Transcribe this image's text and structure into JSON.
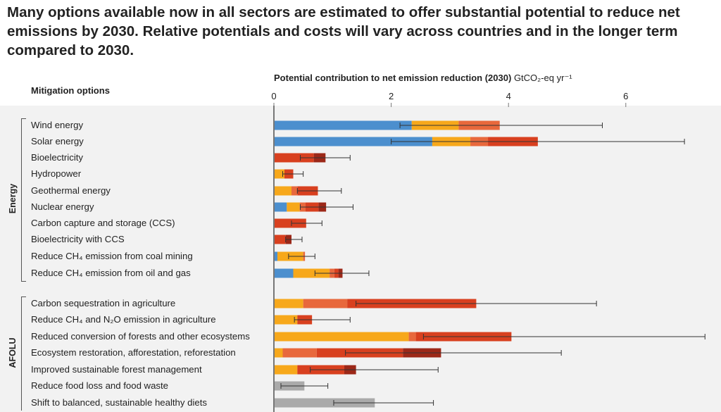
{
  "headline": "Many options available now in all sectors are estimated to offer substantial potential to reduce net emissions by 2030. Relative potentials and costs will vary across countries and in the longer term compared to 2030.",
  "axis_title_bold": "Potential contribution to net emission reduction (2030)",
  "axis_title_unit": "GtCO₂-eq yr⁻¹",
  "column_header": "Mitigation options",
  "groups": [
    "Energy",
    "AFOLU"
  ],
  "colors": {
    "blue": "#4c8fce",
    "yellow": "#f7a81b",
    "orange": "#e8683c",
    "red": "#d8401f",
    "darkred": "#9c2818",
    "gray": "#aaaaaa",
    "error": "#333333",
    "axis": "#777777"
  },
  "chart_data": {
    "type": "bar",
    "orientation": "horizontal",
    "stacked": true,
    "xlim": [
      0,
      7.3
    ],
    "xticks": [
      0,
      2,
      4,
      6
    ],
    "categories": [
      "Wind energy",
      "Solar energy",
      "Bioelectricity",
      "Hydropower",
      "Geothermal energy",
      "Nuclear energy",
      "Carbon capture and storage (CCS)",
      "Bioelectricity with CCS",
      "Reduce CH₄ emission from coal mining",
      "Reduce CH₄ emission from oil and gas",
      "Carbon sequestration in agriculture",
      "Reduce CH₄ and N₂O emission in agriculture",
      "Reduced conversion of forests and other ecosystems",
      "Ecosystem restoration, afforestation, reforestation",
      "Improved sustainable forest management",
      "Reduce food loss and food waste",
      "Shift to balanced, sustainable healthy diets"
    ],
    "group_of": [
      "Energy",
      "Energy",
      "Energy",
      "Energy",
      "Energy",
      "Energy",
      "Energy",
      "Energy",
      "Energy",
      "Energy",
      "AFOLU",
      "AFOLU",
      "AFOLU",
      "AFOLU",
      "AFOLU",
      "AFOLU",
      "AFOLU"
    ],
    "segments": [
      [
        {
          "c": "blue",
          "v": 2.35
        },
        {
          "c": "yellow",
          "v": 0.8
        },
        {
          "c": "orange",
          "v": 0.7
        }
      ],
      [
        {
          "c": "blue",
          "v": 2.7
        },
        {
          "c": "yellow",
          "v": 0.65
        },
        {
          "c": "orange",
          "v": 0.3
        },
        {
          "c": "red",
          "v": 0.85
        }
      ],
      [
        {
          "c": "red",
          "v": 0.68
        },
        {
          "c": "darkred",
          "v": 0.2
        }
      ],
      [
        {
          "c": "yellow",
          "v": 0.18
        },
        {
          "c": "red",
          "v": 0.15
        }
      ],
      [
        {
          "c": "yellow",
          "v": 0.3
        },
        {
          "c": "orange",
          "v": 0.1
        },
        {
          "c": "red",
          "v": 0.35
        }
      ],
      [
        {
          "c": "blue",
          "v": 0.22
        },
        {
          "c": "yellow",
          "v": 0.22
        },
        {
          "c": "orange",
          "v": 0.1
        },
        {
          "c": "red",
          "v": 0.22
        },
        {
          "c": "darkred",
          "v": 0.13
        }
      ],
      [
        {
          "c": "red",
          "v": 0.55
        }
      ],
      [
        {
          "c": "red",
          "v": 0.2
        },
        {
          "c": "darkred",
          "v": 0.1
        }
      ],
      [
        {
          "c": "blue",
          "v": 0.06
        },
        {
          "c": "yellow",
          "v": 0.44
        },
        {
          "c": "orange",
          "v": 0.03
        }
      ],
      [
        {
          "c": "blue",
          "v": 0.33
        },
        {
          "c": "yellow",
          "v": 0.62
        },
        {
          "c": "orange",
          "v": 0.08
        },
        {
          "c": "red",
          "v": 0.07
        },
        {
          "c": "darkred",
          "v": 0.07
        }
      ],
      [
        {
          "c": "yellow",
          "v": 0.5
        },
        {
          "c": "orange",
          "v": 0.75
        },
        {
          "c": "red",
          "v": 2.2
        }
      ],
      [
        {
          "c": "yellow",
          "v": 0.4
        },
        {
          "c": "red",
          "v": 0.25
        }
      ],
      [
        {
          "c": "yellow",
          "v": 2.3
        },
        {
          "c": "orange",
          "v": 0.12
        },
        {
          "c": "red",
          "v": 1.63
        }
      ],
      [
        {
          "c": "yellow",
          "v": 0.15
        },
        {
          "c": "orange",
          "v": 0.58
        },
        {
          "c": "red",
          "v": 1.47
        },
        {
          "c": "darkred",
          "v": 0.65
        }
      ],
      [
        {
          "c": "yellow",
          "v": 0.4
        },
        {
          "c": "red",
          "v": 0.8
        },
        {
          "c": "darkred",
          "v": 0.2
        }
      ],
      [
        {
          "c": "gray",
          "v": 0.52
        }
      ],
      [
        {
          "c": "gray",
          "v": 1.72
        }
      ]
    ],
    "error_bars": [
      [
        2.15,
        5.6
      ],
      [
        2.0,
        7.0
      ],
      [
        0.45,
        1.3
      ],
      [
        0.15,
        0.5
      ],
      [
        0.4,
        1.15
      ],
      [
        0.45,
        1.35
      ],
      [
        0.3,
        0.82
      ],
      [
        0.2,
        0.48
      ],
      [
        0.25,
        0.7
      ],
      [
        0.7,
        1.62
      ],
      [
        1.4,
        5.5
      ],
      [
        0.35,
        1.3
      ],
      [
        2.55,
        7.35
      ],
      [
        1.22,
        4.9
      ],
      [
        0.62,
        2.8
      ],
      [
        0.12,
        0.92
      ],
      [
        1.02,
        2.72
      ]
    ]
  }
}
